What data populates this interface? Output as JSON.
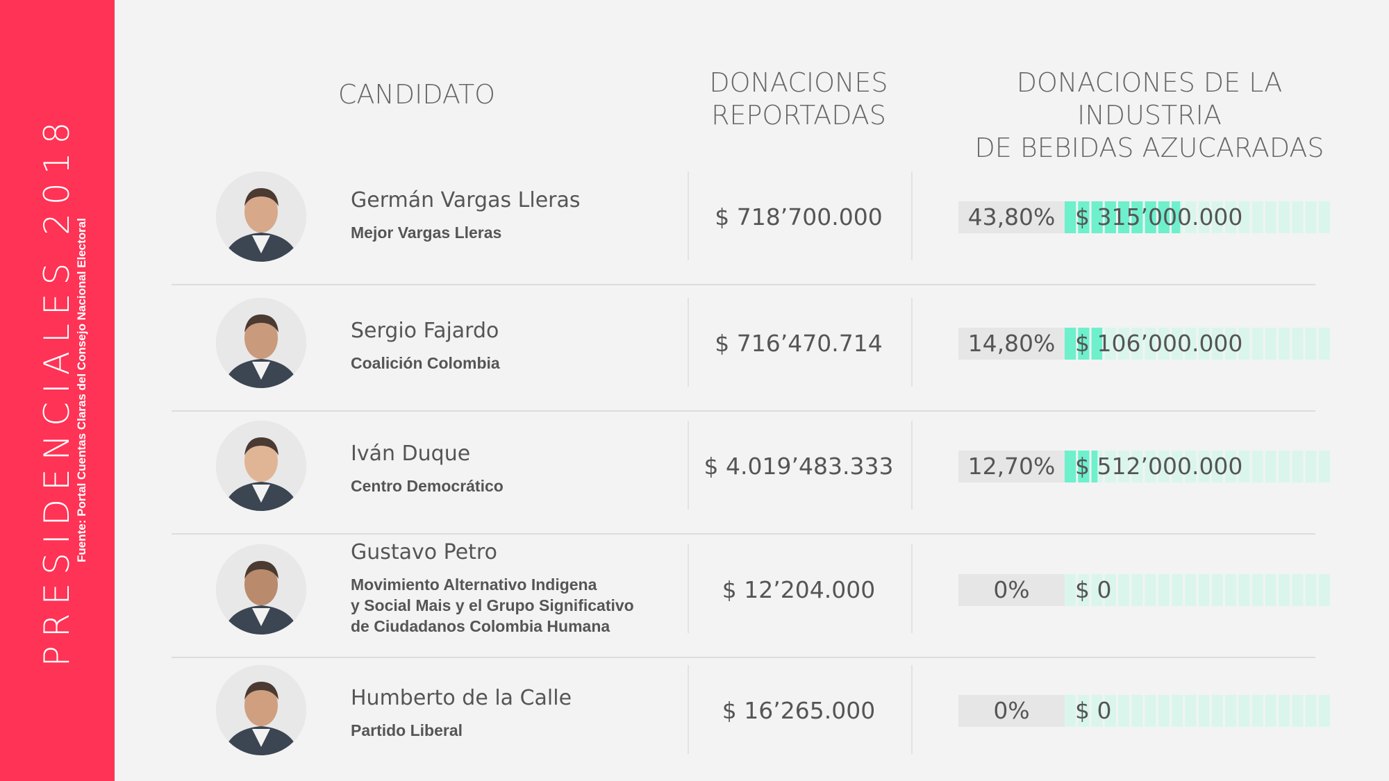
{
  "sidebar": {
    "title": "PRESIDENCIALES 2018",
    "source": "Fuente: Portal Cuentas Claras del Consejo Nacional Electoral",
    "color": "#ff3355"
  },
  "headers": {
    "candidate": "CANDIDATO",
    "donations": [
      "DONACIONES",
      "REPORTADAS"
    ],
    "industry": [
      "DONACIONES DE LA INDUSTRIA",
      "DE BEBIDAS AZUCARADAS"
    ]
  },
  "colors": {
    "accent": "#6ef0cd",
    "accent_light": "#daf6ec",
    "pct_bg": "#e6e6e6"
  },
  "chart_data": {
    "type": "table",
    "columns": [
      "CANDIDATO",
      "DONACIONES REPORTADAS",
      "DONACIONES DE LA INDUSTRIA DE BEBIDAS AZUCARADAS"
    ],
    "rows": [
      {
        "name": "Germán Vargas Lleras",
        "party": [
          "Mejor Vargas Lleras"
        ],
        "donations": "$ 718’700.000",
        "pct_label": "43,80%",
        "pct": 43.8,
        "amount": "$ 315’000.000"
      },
      {
        "name": "Sergio Fajardo",
        "party": [
          "Coalición Colombia"
        ],
        "donations": "$ 716’470.714",
        "pct_label": "14,80%",
        "pct": 14.8,
        "amount": "$ 106’000.000"
      },
      {
        "name": "Iván Duque",
        "party": [
          "Centro Democrático"
        ],
        "donations": "$ 4.019’483.333",
        "pct_label": "12,70%",
        "pct": 12.7,
        "amount": "$ 512’000.000"
      },
      {
        "name": "Gustavo Petro",
        "party": [
          "Movimiento Alternativo Indigena",
          "y Social Mais y el Grupo Significativo",
          "de Ciudadanos Colombia Humana"
        ],
        "donations": "$ 12’204.000",
        "pct_label": "0%",
        "pct": 0,
        "amount": "$ 0"
      },
      {
        "name": "Humberto de la Calle",
        "party": [
          "Partido Liberal"
        ],
        "donations": "$ 16’265.000",
        "pct_label": "0%",
        "pct": 0,
        "amount": "$ 0"
      }
    ]
  }
}
